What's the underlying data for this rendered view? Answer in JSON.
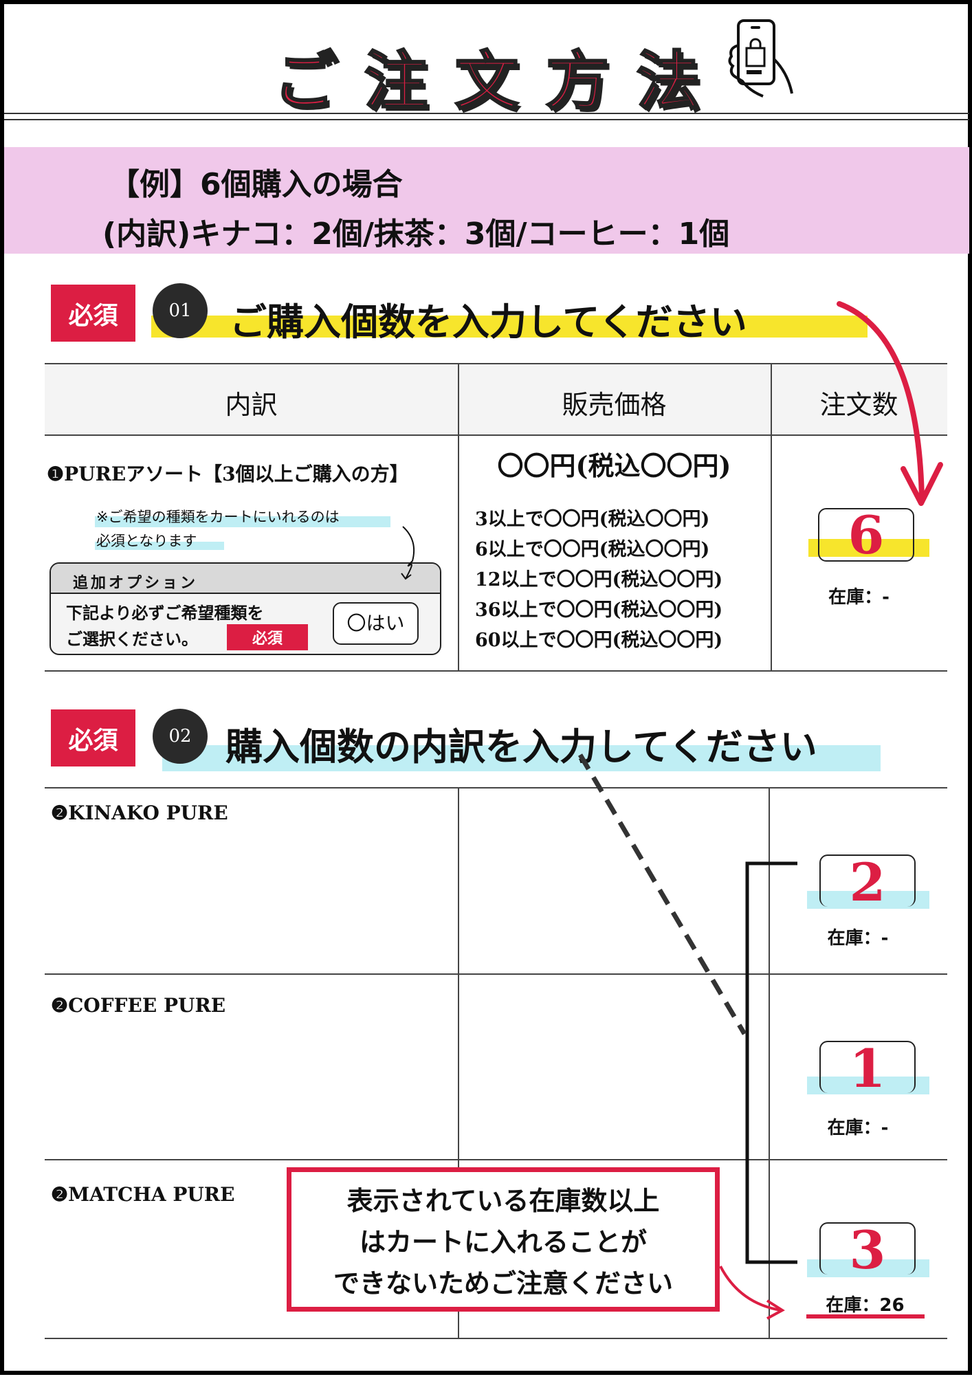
{
  "title": "ご注文方法",
  "title_icon": "smartphone-shopping-bag-icon",
  "colors": {
    "accent_red": "#dc1e43",
    "pink_band": "#f0c8ea",
    "yellow_highlight": "#f7e52c",
    "cyan_highlight": "#bfeef4"
  },
  "example": {
    "line1": "【例】6個購入の場合",
    "line2": "(内訳)キナコ：2個/抹茶：3個/コーヒー：1個"
  },
  "step1": {
    "required": "必須",
    "number": "01",
    "heading": "ご購入個数を入力してください",
    "table": {
      "headers": [
        "内訳",
        "販売価格",
        "注文数"
      ],
      "item": "❶PUREアソート【3個以上ご購入の方】",
      "note_line1": "※ご希望の種類をカートにいれるのは",
      "note_line2": "必須となります",
      "option": {
        "header": "追加オプション",
        "text_line1": "下記より必ずご希望種類を",
        "text_line2": "ご選択ください。",
        "required": "必須",
        "button": "〇はい"
      },
      "price_main": "〇〇円(税込〇〇円)",
      "price_tiers": [
        "3以上で〇〇円(税込〇〇円)",
        "6以上で〇〇円(税込〇〇円)",
        "12以上で〇〇円(税込〇〇円)",
        "36以上で〇〇円(税込〇〇円)",
        "60以上で〇〇円(税込〇〇円)"
      ],
      "quantity": "6",
      "stock": "在庫：-"
    }
  },
  "step2": {
    "required": "必須",
    "number": "02",
    "heading": "購入個数の内訳を入力してください",
    "rows": [
      {
        "item": "❷KINAKO PURE",
        "quantity": "2",
        "stock": "在庫：-"
      },
      {
        "item": "❷COFFEE PURE",
        "quantity": "1",
        "stock": "在庫：-"
      },
      {
        "item": "❷MATCHA PURE",
        "quantity": "3",
        "stock": "在庫：26"
      }
    ],
    "warning_line1": "表示されている在庫数以上",
    "warning_line2": "はカートに入れることが",
    "warning_line3": "できないためご注意ください"
  }
}
